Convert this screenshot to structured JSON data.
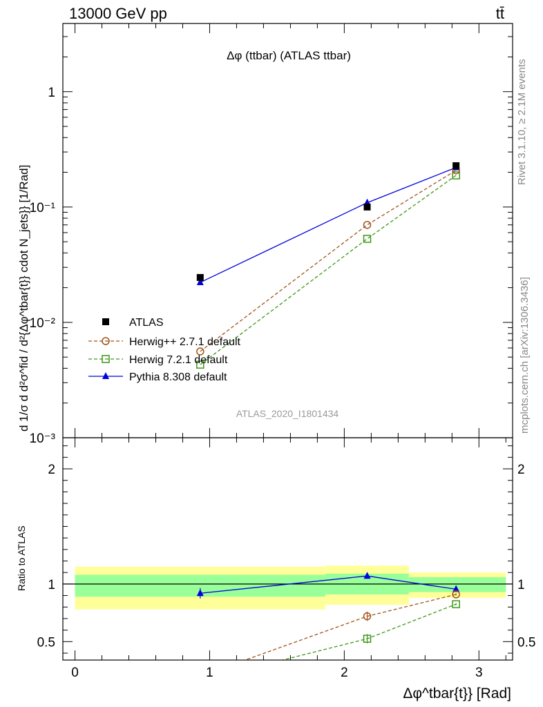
{
  "header": {
    "energy_label": "13000 GeV pp",
    "process_label": "tt̄"
  },
  "side_text": {
    "rivet": "Rivet 3.1.10, ≥ 2.1M events",
    "mcplots": "mcplots.cern.ch [arXiv:1306.3436]"
  },
  "chart_data": [
    {
      "panel": "main",
      "type": "line",
      "title": "Δφ (ttbar) (ATLAS ttbar)",
      "watermark": "ATLAS_2020_I1801434",
      "ylabel": "d 1/σ d d²σ^fid / d²{Δφ^tbar{t}} cdot N_jets}} [1/Rad]",
      "yscale": "log",
      "ylim": [
        0.001,
        3.9
      ],
      "xlim": [
        -0.09,
        3.25
      ],
      "y_tick_labels": [
        "1",
        "10⁻¹",
        "10⁻²",
        "10⁻³"
      ],
      "legend_position": "lower-left",
      "x": [
        0.93,
        2.17,
        2.83
      ],
      "series": [
        {
          "name": "ATLAS",
          "color": "#000000",
          "marker": "square",
          "line": "none",
          "values": [
            0.0245,
            0.1,
            0.228
          ]
        },
        {
          "name": "Herwig++ 2.7.1 default",
          "color": "#a0521a",
          "marker": "open-circle",
          "line": "dashed",
          "values": [
            0.0056,
            0.07,
            0.208
          ]
        },
        {
          "name": "Herwig 7.2.1 default",
          "color": "#3c9614",
          "marker": "open-square",
          "line": "dashed",
          "values": [
            0.0043,
            0.053,
            0.188
          ]
        },
        {
          "name": "Pythia 8.308 default",
          "color": "#0000dd",
          "marker": "filled-triangle",
          "line": "solid",
          "values": [
            0.0222,
            0.109,
            0.22
          ]
        }
      ]
    },
    {
      "panel": "ratio",
      "type": "line",
      "ylabel": "Ratio to ATLAS",
      "xlabel": "Δφ^tbar{t}} [Rad]",
      "ylim": [
        0.34,
        2.27
      ],
      "xlim": [
        -0.09,
        3.25
      ],
      "y_tick_labels": [
        "2",
        "1",
        "0.5"
      ],
      "x_tick_labels": [
        "0",
        "1",
        "2",
        "3"
      ],
      "reference_line": 1.0,
      "bands": [
        {
          "x_range": [
            0.0,
            1.86
          ],
          "inner": [
            0.89,
            1.08
          ],
          "outer": [
            0.78,
            1.15
          ]
        },
        {
          "x_range": [
            1.86,
            2.48
          ],
          "inner": [
            0.91,
            1.09
          ],
          "outer": [
            0.82,
            1.16
          ]
        },
        {
          "x_range": [
            2.48,
            3.2
          ],
          "inner": [
            0.93,
            1.06
          ],
          "outer": [
            0.88,
            1.1
          ]
        }
      ],
      "x": [
        0.93,
        2.17,
        2.83
      ],
      "series": [
        {
          "name": "Pythia 8.308 default",
          "color": "#0000dd",
          "values": [
            0.92,
            1.07,
            0.955
          ],
          "errors": [
            0.045,
            0.025,
            0.015
          ]
        },
        {
          "name": "Herwig++ 2.7.1 default",
          "color": "#a0521a",
          "values": [
            0.2,
            0.72,
            0.91
          ],
          "errors": [
            0.0,
            0.04,
            0.01
          ]
        },
        {
          "name": "Herwig 7.2.1 default",
          "color": "#3c9614",
          "values": [
            0.16,
            0.525,
            0.825
          ],
          "errors": [
            0.0,
            0.04,
            0.01
          ]
        }
      ]
    }
  ]
}
